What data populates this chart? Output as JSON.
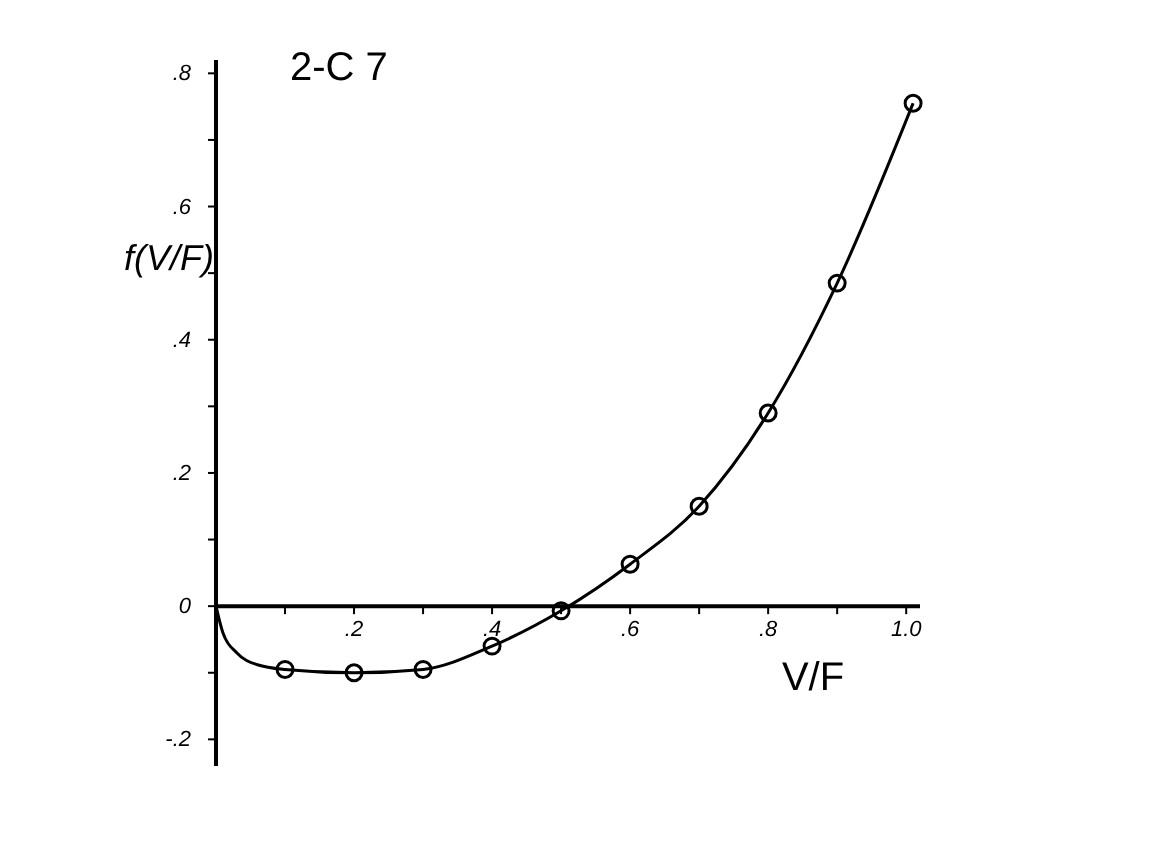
{
  "chart_data": {
    "type": "scatter",
    "title": "2-C 7",
    "xlabel": "V/F",
    "ylabel": "f(V/F)",
    "xlim": [
      0,
      1.02
    ],
    "ylim": [
      -0.24,
      0.82
    ],
    "xticks": [
      {
        "value": 0.1,
        "label": null
      },
      {
        "value": 0.2,
        "label": ".2"
      },
      {
        "value": 0.3,
        "label": null
      },
      {
        "value": 0.4,
        "label": ".4"
      },
      {
        "value": 0.5,
        "label": null
      },
      {
        "value": 0.6,
        "label": ".6"
      },
      {
        "value": 0.7,
        "label": null
      },
      {
        "value": 0.8,
        "label": ".8"
      },
      {
        "value": 0.9,
        "label": null
      },
      {
        "value": 1.0,
        "label": "1.0"
      }
    ],
    "yticks": [
      {
        "value": -0.2,
        "label": "-.2"
      },
      {
        "value": -0.1,
        "label": null
      },
      0,
      {
        "value": 0.1,
        "label": null
      },
      {
        "value": 0.2,
        "label": ".2"
      },
      {
        "value": 0.3,
        "label": null
      },
      {
        "value": 0.4,
        "label": ".4"
      },
      {
        "value": 0.5,
        "label": null
      },
      {
        "value": 0.6,
        "label": ".6"
      },
      {
        "value": 0.7,
        "label": null
      },
      {
        "value": 0.8,
        "label": ".8"
      }
    ],
    "grid": false,
    "marker": "circle",
    "series": [
      {
        "type": "line",
        "marker": "none",
        "color": "#000000",
        "x": [
          0,
          0.01,
          0.03,
          0.06,
          0.1,
          0.2,
          0.3,
          0.4,
          0.5,
          0.6,
          0.7,
          0.8,
          0.9,
          1.01
        ],
        "values": [
          0,
          -0.04,
          -0.07,
          -0.088,
          -0.095,
          -0.1,
          -0.095,
          -0.06,
          -0.007,
          0.063,
          0.15,
          0.29,
          0.485,
          0.755
        ]
      },
      {
        "color": "#000000",
        "x": [
          0.1,
          0.2,
          0.3,
          0.4,
          0.5,
          0.6,
          0.7,
          0.8,
          0.9,
          1.01
        ],
        "values": [
          -0.095,
          -0.1,
          -0.095,
          -0.06,
          -0.007,
          0.063,
          0.15,
          0.29,
          0.485,
          0.755
        ]
      }
    ]
  }
}
